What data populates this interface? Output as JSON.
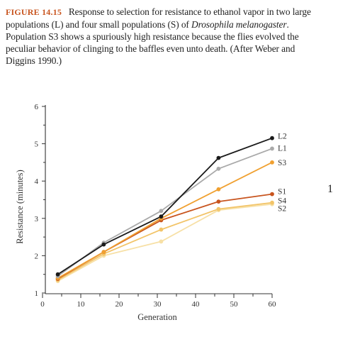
{
  "caption": {
    "figure_label": "FIGURE 14.15",
    "text_a": "Response to selection for resistance to ethanol vapor in two large populations (L) and four small populations (S) of ",
    "species": "Drosophila melanogaster",
    "text_b": ". Population S3 shows a spuriously high resistance because the flies evolved the peculiar behavior of clinging to the baffles even unto death. (After Weber and Diggins 1990.)"
  },
  "stray_char": "1",
  "chart_data": {
    "type": "line",
    "xlabel": "Generation",
    "ylabel": "Resistance (minutes)",
    "xlim": [
      0,
      60
    ],
    "ylim": [
      1,
      6
    ],
    "xticks": [
      0,
      10,
      20,
      30,
      40,
      50,
      60
    ],
    "yticks": [
      1,
      2,
      3,
      4,
      5,
      6
    ],
    "x": [
      4,
      16,
      31,
      46,
      60
    ],
    "series": [
      {
        "name": "L2",
        "color": "#1a1a1a",
        "values": [
          1.5,
          2.3,
          3.05,
          4.62,
          5.15
        ]
      },
      {
        "name": "L1",
        "color": "#a9a9a9",
        "values": [
          1.45,
          2.35,
          3.2,
          4.33,
          4.87
        ]
      },
      {
        "name": "S3",
        "color": "#f0a030",
        "values": [
          1.4,
          2.1,
          3.0,
          3.78,
          4.5
        ]
      },
      {
        "name": "S1",
        "color": "#c8541e",
        "values": [
          1.38,
          2.1,
          2.95,
          3.45,
          3.65
        ]
      },
      {
        "name": "S4",
        "color": "#f2c468",
        "values": [
          1.35,
          2.05,
          2.7,
          3.25,
          3.42
        ]
      },
      {
        "name": "S2",
        "color": "#f7e0a6",
        "values": [
          1.32,
          2.0,
          2.38,
          3.22,
          3.38
        ]
      }
    ]
  }
}
